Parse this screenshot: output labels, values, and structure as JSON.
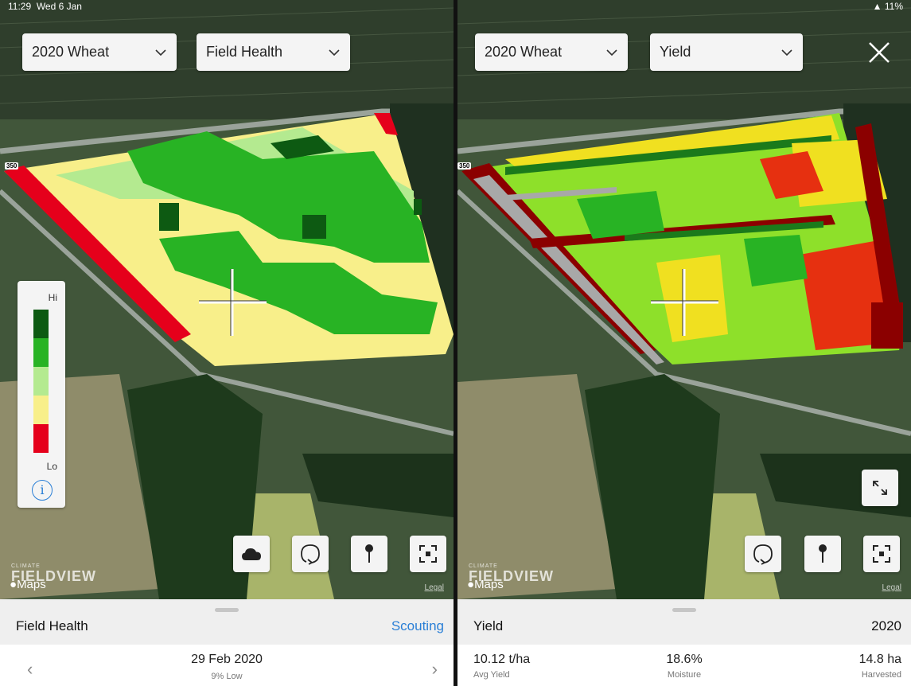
{
  "left": {
    "status": {
      "time": "11:29",
      "date": "Wed 6 Jan"
    },
    "season_select": "2020 Wheat",
    "layer_select": "Field Health",
    "road_marker": "350",
    "legend": {
      "hi": "Hi",
      "lo": "Lo",
      "colors": [
        "#0d5a12",
        "#28b324",
        "#b4ea90",
        "#f8ef8a",
        "#e5001b"
      ]
    },
    "tools": [
      "cloud-icon",
      "lasso-icon",
      "pin-icon",
      "focus-icon"
    ],
    "brand_small": "CLIMATE",
    "brand_big": "FIELDVIEW",
    "maps_label": "Maps",
    "legal": "Legal",
    "sheet": {
      "title": "Field Health",
      "action": "Scouting",
      "date": "29 Feb 2020",
      "sub": "9% Low",
      "prev": "‹",
      "next": "›"
    }
  },
  "right": {
    "status": {
      "battery": "11%"
    },
    "season_select": "2020 Wheat",
    "layer_select": "Yield",
    "road_marker": "350",
    "tools": [
      "lasso-icon",
      "pin-icon",
      "focus-icon"
    ],
    "brand_small": "CLIMATE",
    "brand_big": "FIELDVIEW",
    "maps_label": "Maps",
    "legal": "Legal",
    "sheet": {
      "title": "Yield",
      "year": "2020",
      "stats": [
        {
          "value": "10.12 t/ha",
          "label": "Avg Yield"
        },
        {
          "value": "18.6%",
          "label": "Moisture"
        },
        {
          "value": "14.8 ha",
          "label": "Harvested"
        }
      ]
    }
  }
}
